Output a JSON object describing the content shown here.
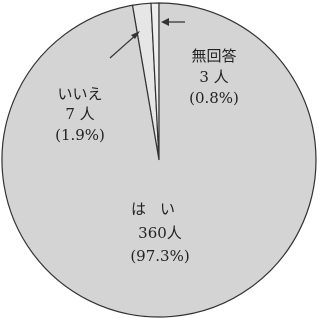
{
  "chart_data": {
    "type": "pie",
    "categories": [
      "はい",
      "いいえ",
      "無回答"
    ],
    "values": [
      360,
      7,
      3
    ],
    "value_labels": [
      "360人",
      "7 人",
      "3 人"
    ],
    "percentages": [
      97.3,
      1.9,
      0.8
    ],
    "percentage_labels": [
      "(97.3%)",
      "(1.9%)",
      "(0.8%)"
    ],
    "colors": [
      "#d4d4d4",
      "#e6e6e6",
      "#eeeeee"
    ]
  }
}
